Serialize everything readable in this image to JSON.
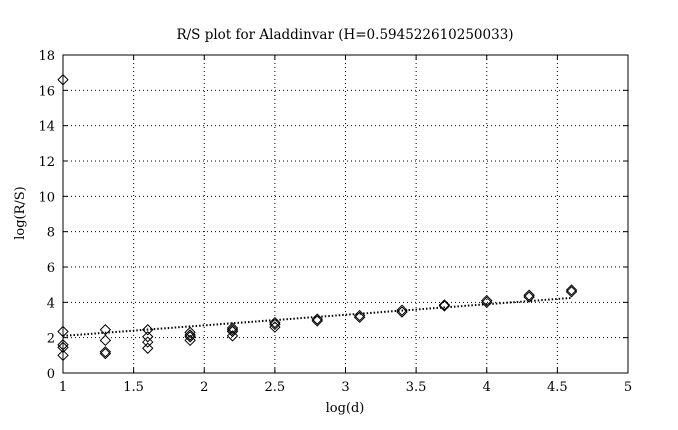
{
  "chart_data": {
    "type": "scatter",
    "title": "R/S plot for Aladdinvar (H=0.594522610250033)",
    "xlabel": "log(d)",
    "ylabel": "log(R/S)",
    "xlim": [
      1,
      5
    ],
    "ylim": [
      0,
      18
    ],
    "xticks": [
      1,
      1.5,
      2,
      2.5,
      3,
      3.5,
      4,
      4.5,
      5
    ],
    "yticks": [
      0,
      2,
      4,
      6,
      8,
      10,
      12,
      14,
      16,
      18
    ],
    "grid": true,
    "legend": "none",
    "marker": "diamond",
    "series": [
      {
        "points": [
          [
            1.0,
            16.6
          ],
          [
            1.0,
            2.35
          ],
          [
            1.0,
            1.6
          ],
          [
            1.0,
            1.45
          ],
          [
            1.0,
            1.0
          ],
          [
            1.3,
            2.45
          ],
          [
            1.3,
            1.85
          ],
          [
            1.3,
            1.2
          ],
          [
            1.3,
            1.1
          ],
          [
            1.6,
            2.45
          ],
          [
            1.6,
            2.05
          ],
          [
            1.6,
            1.75
          ],
          [
            1.6,
            1.4
          ],
          [
            1.9,
            2.3
          ],
          [
            1.9,
            2.15
          ],
          [
            1.9,
            2.05
          ],
          [
            1.9,
            1.85
          ],
          [
            2.2,
            2.55
          ],
          [
            2.2,
            2.45
          ],
          [
            2.2,
            2.35
          ],
          [
            2.2,
            2.1
          ],
          [
            2.5,
            2.85
          ],
          [
            2.5,
            2.75
          ],
          [
            2.5,
            2.6
          ],
          [
            2.8,
            3.05
          ],
          [
            2.8,
            2.95
          ],
          [
            3.1,
            3.25
          ],
          [
            3.1,
            3.15
          ],
          [
            3.4,
            3.55
          ],
          [
            3.4,
            3.45
          ],
          [
            3.7,
            3.85
          ],
          [
            3.7,
            3.8
          ],
          [
            4.0,
            4.1
          ],
          [
            4.0,
            4.0
          ],
          [
            4.3,
            4.4
          ],
          [
            4.3,
            4.3
          ],
          [
            4.6,
            4.7
          ],
          [
            4.6,
            4.6
          ]
        ]
      }
    ],
    "fit_line": {
      "style": "dotted",
      "x": [
        1.0,
        4.6
      ],
      "y": [
        2.1,
        4.25
      ]
    }
  }
}
